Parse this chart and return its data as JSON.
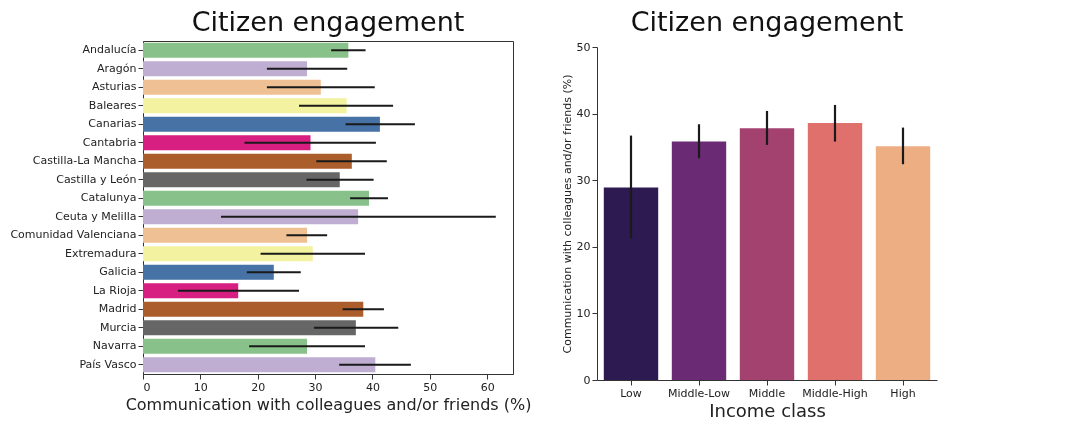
{
  "chart_data": [
    {
      "type": "bar",
      "orientation": "horizontal",
      "title": "Citizen engagement",
      "xlabel": "Communication with colleagues and/or friends (%)",
      "categories": [
        "Andalucía",
        "Aragón",
        "Asturias",
        "Baleares",
        "Canarias",
        "Cantabria",
        "Castilla-La Mancha",
        "Castilla y León",
        "Catalunya",
        "Ceuta y Melilla",
        "Comunidad Valenciana",
        "Extremadura",
        "Galicia",
        "La Rioja",
        "Madrid",
        "Murcia",
        "Navarra",
        "País Vasco"
      ],
      "values": [
        35.8,
        28.6,
        31.0,
        35.5,
        41.3,
        29.2,
        36.4,
        34.3,
        39.4,
        37.5,
        28.6,
        29.6,
        22.8,
        16.6,
        38.4,
        37.1,
        28.6,
        40.5
      ],
      "errors": [
        [
          32.8,
          38.8
        ],
        [
          21.6,
          35.6
        ],
        [
          21.6,
          40.4
        ],
        [
          27.2,
          43.6
        ],
        [
          35.3,
          47.4
        ],
        [
          17.7,
          40.6
        ],
        [
          30.2,
          42.5
        ],
        [
          28.5,
          40.2
        ],
        [
          36.1,
          42.7
        ],
        [
          13.6,
          61.5
        ],
        [
          25.0,
          32.1
        ],
        [
          20.5,
          38.7
        ],
        [
          18.1,
          27.5
        ],
        [
          6.1,
          27.2
        ],
        [
          34.8,
          42.0
        ],
        [
          29.8,
          44.5
        ],
        [
          18.5,
          38.7
        ],
        [
          34.2,
          46.7
        ]
      ],
      "colors": [
        "#88c189",
        "#bfaed2",
        "#efc093",
        "#f3f2a1",
        "#4672a5",
        "#d61f80",
        "#ac5d2c",
        "#666666",
        "#88c189",
        "#bfaed2",
        "#efc093",
        "#f3f2a1",
        "#4672a5",
        "#d61f80",
        "#ac5d2c",
        "#666666",
        "#88c189",
        "#bfaed2"
      ],
      "xlim": [
        0,
        64.5
      ],
      "xticks": [
        0,
        10,
        20,
        30,
        40,
        50,
        60
      ]
    },
    {
      "type": "bar",
      "title": "Citizen engagement",
      "xlabel": "Income class",
      "ylabel": "Communication with colleagues and/or friends (%)",
      "categories": [
        "Low",
        "Middle-Low",
        "Middle",
        "Middle-High",
        "High"
      ],
      "values": [
        28.9,
        35.8,
        37.8,
        38.6,
        35.1
      ],
      "errors": [
        [
          21.3,
          36.7
        ],
        [
          33.3,
          38.4
        ],
        [
          35.3,
          40.4
        ],
        [
          35.8,
          41.3
        ],
        [
          32.4,
          37.9
        ]
      ],
      "colors": [
        "#2d1a50",
        "#6a2a74",
        "#a4426f",
        "#e0706b",
        "#eeae83"
      ],
      "ylim": [
        0,
        50
      ],
      "yticks": [
        0,
        10,
        20,
        30,
        40,
        50
      ]
    }
  ]
}
